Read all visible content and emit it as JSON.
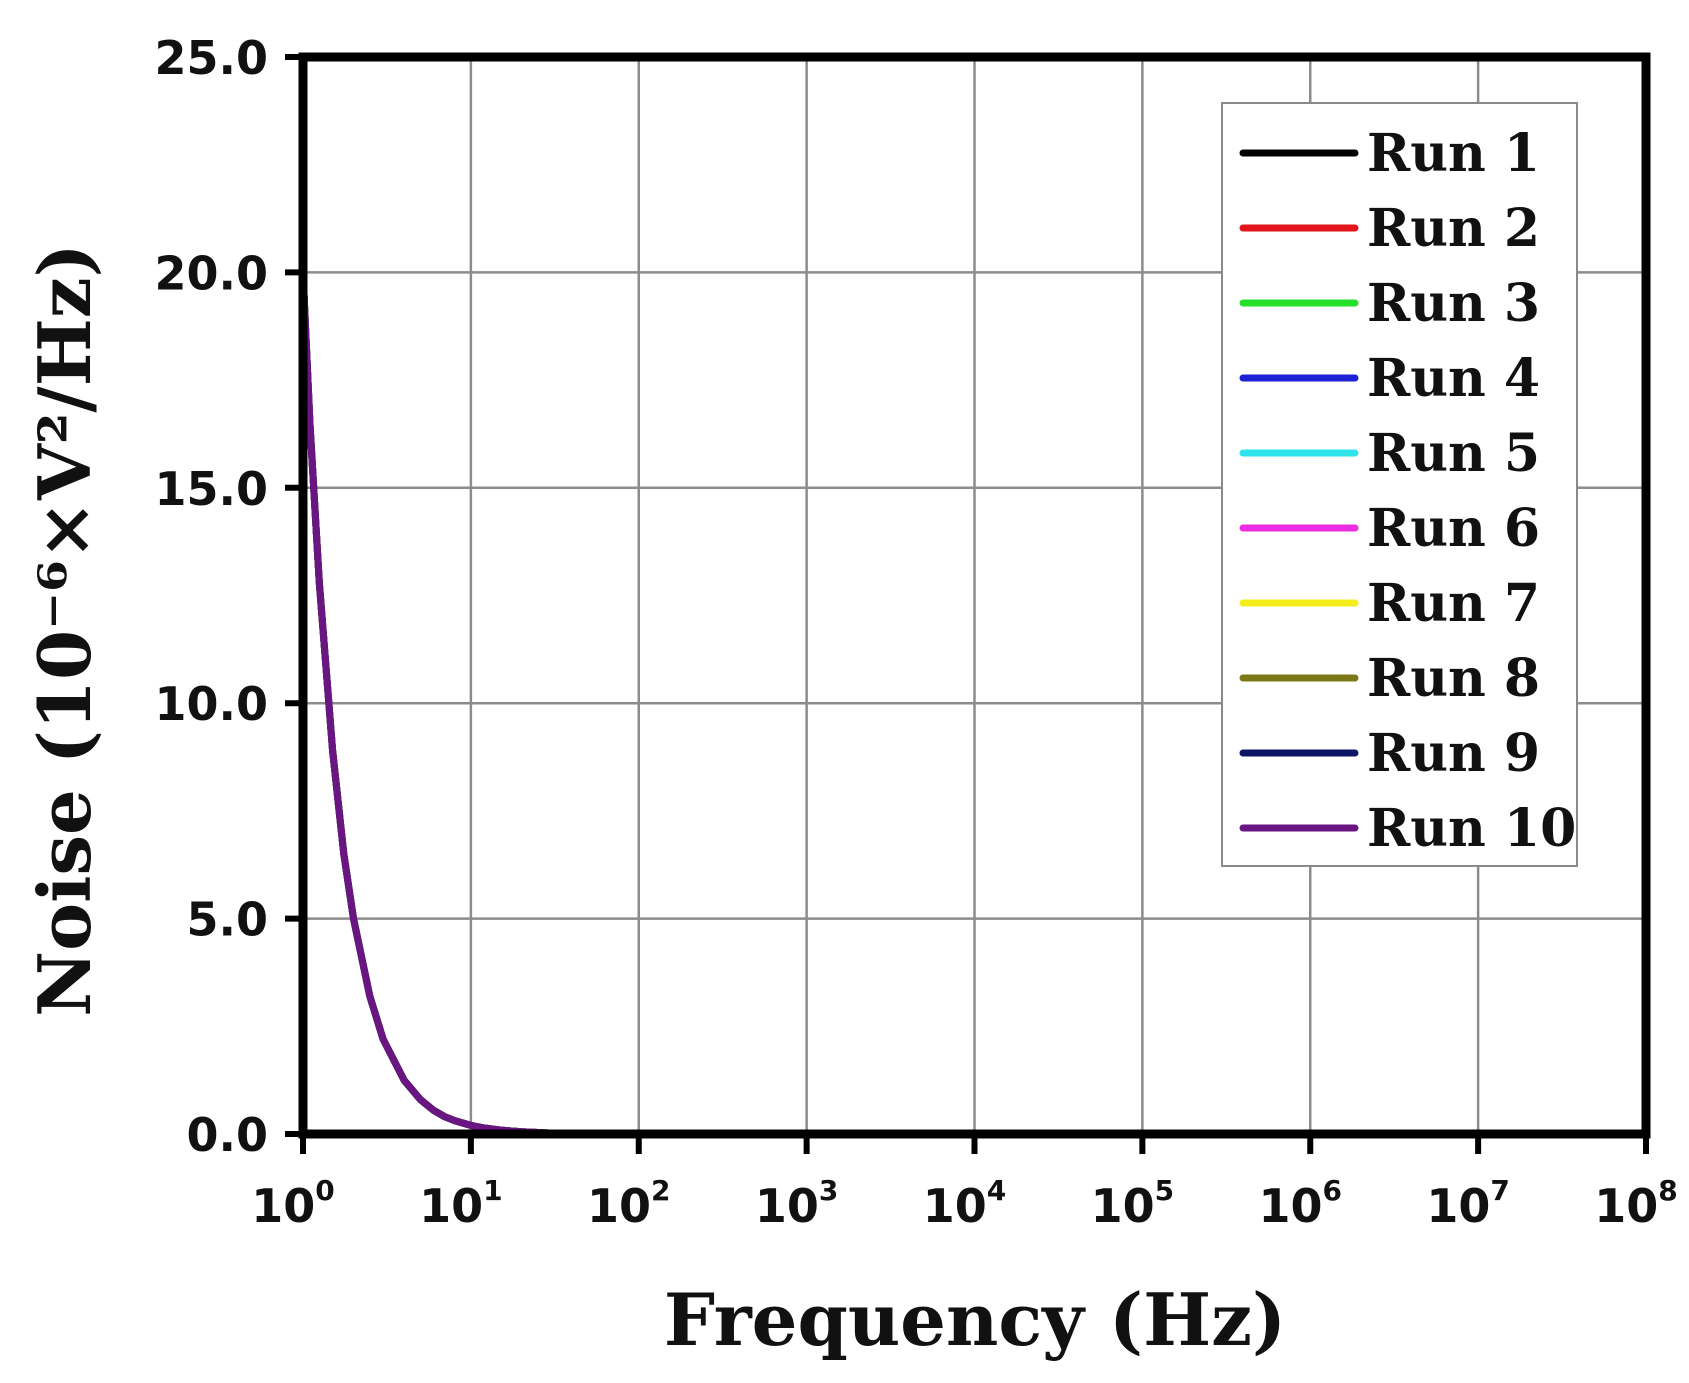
{
  "chart_data": {
    "type": "line",
    "xlabel": "Frequency (Hz)",
    "ylabel": "Noise (10⁻⁶×V²/Hz)",
    "x_scale": "log",
    "xlim": [
      1,
      100000000
    ],
    "ylim": [
      0,
      25
    ],
    "grid": true,
    "legend_position": "top-right",
    "y_ticks": [
      "0.0",
      "5.0",
      "10.0",
      "15.0",
      "20.0",
      "25.0"
    ],
    "x_ticks": [
      {
        "base": "10",
        "exp": "0"
      },
      {
        "base": "10",
        "exp": "1"
      },
      {
        "base": "10",
        "exp": "2"
      },
      {
        "base": "10",
        "exp": "3"
      },
      {
        "base": "10",
        "exp": "4"
      },
      {
        "base": "10",
        "exp": "5"
      },
      {
        "base": "10",
        "exp": "6"
      },
      {
        "base": "10",
        "exp": "7"
      },
      {
        "base": "10",
        "exp": "8"
      }
    ],
    "x": [
      1,
      1.1,
      1.25,
      1.5,
      1.75,
      2,
      2.5,
      3,
      4,
      5,
      6,
      7,
      8,
      10,
      12,
      15,
      20,
      30,
      50,
      100
    ],
    "series": [
      {
        "name": "Run 1",
        "color": "#000000",
        "values": [
          20.0,
          16.5,
          12.8,
          8.9,
          6.5,
          5.0,
          3.2,
          2.2,
          1.25,
          0.8,
          0.55,
          0.4,
          0.31,
          0.2,
          0.14,
          0.09,
          0.05,
          0.02,
          0.008,
          0.002
        ]
      },
      {
        "name": "Run 2",
        "color": "#e3141b",
        "values": [
          20.0,
          16.5,
          12.8,
          8.9,
          6.5,
          5.0,
          3.2,
          2.2,
          1.25,
          0.8,
          0.55,
          0.4,
          0.31,
          0.2,
          0.14,
          0.09,
          0.05,
          0.02,
          0.008,
          0.002
        ]
      },
      {
        "name": "Run 3",
        "color": "#25e02a",
        "values": [
          20.0,
          16.5,
          12.8,
          8.9,
          6.5,
          5.0,
          3.2,
          2.2,
          1.25,
          0.8,
          0.55,
          0.4,
          0.31,
          0.2,
          0.14,
          0.09,
          0.05,
          0.02,
          0.008,
          0.002
        ]
      },
      {
        "name": "Run 4",
        "color": "#1d22d6",
        "values": [
          20.0,
          16.5,
          12.8,
          8.9,
          6.5,
          5.0,
          3.2,
          2.2,
          1.25,
          0.8,
          0.55,
          0.4,
          0.31,
          0.2,
          0.14,
          0.09,
          0.05,
          0.02,
          0.008,
          0.002
        ]
      },
      {
        "name": "Run 5",
        "color": "#2ee3ea",
        "values": [
          20.0,
          16.5,
          12.8,
          8.9,
          6.5,
          5.0,
          3.2,
          2.2,
          1.25,
          0.8,
          0.55,
          0.4,
          0.31,
          0.2,
          0.14,
          0.09,
          0.05,
          0.02,
          0.008,
          0.002
        ]
      },
      {
        "name": "Run 6",
        "color": "#ee2be4",
        "values": [
          20.0,
          16.5,
          12.8,
          8.9,
          6.5,
          5.0,
          3.2,
          2.2,
          1.25,
          0.8,
          0.55,
          0.4,
          0.31,
          0.2,
          0.14,
          0.09,
          0.05,
          0.02,
          0.008,
          0.002
        ]
      },
      {
        "name": "Run 7",
        "color": "#f5ee1c",
        "values": [
          20.0,
          16.5,
          12.8,
          8.9,
          6.5,
          5.0,
          3.2,
          2.2,
          1.25,
          0.8,
          0.55,
          0.4,
          0.31,
          0.2,
          0.14,
          0.09,
          0.05,
          0.02,
          0.008,
          0.002
        ]
      },
      {
        "name": "Run 8",
        "color": "#7c7818",
        "values": [
          20.0,
          16.5,
          12.8,
          8.9,
          6.5,
          5.0,
          3.2,
          2.2,
          1.25,
          0.8,
          0.55,
          0.4,
          0.31,
          0.2,
          0.14,
          0.09,
          0.05,
          0.02,
          0.008,
          0.002
        ]
      },
      {
        "name": "Run 9",
        "color": "#0c1466",
        "values": [
          20.0,
          16.5,
          12.8,
          8.9,
          6.5,
          5.0,
          3.2,
          2.2,
          1.25,
          0.8,
          0.55,
          0.4,
          0.31,
          0.2,
          0.14,
          0.09,
          0.05,
          0.02,
          0.008,
          0.002
        ]
      },
      {
        "name": "Run 10",
        "color": "#6a1682",
        "values": [
          20.0,
          16.5,
          12.8,
          8.9,
          6.5,
          5.0,
          3.2,
          2.2,
          1.25,
          0.8,
          0.55,
          0.4,
          0.31,
          0.2,
          0.14,
          0.09,
          0.05,
          0.02,
          0.008,
          0.002
        ]
      }
    ]
  }
}
